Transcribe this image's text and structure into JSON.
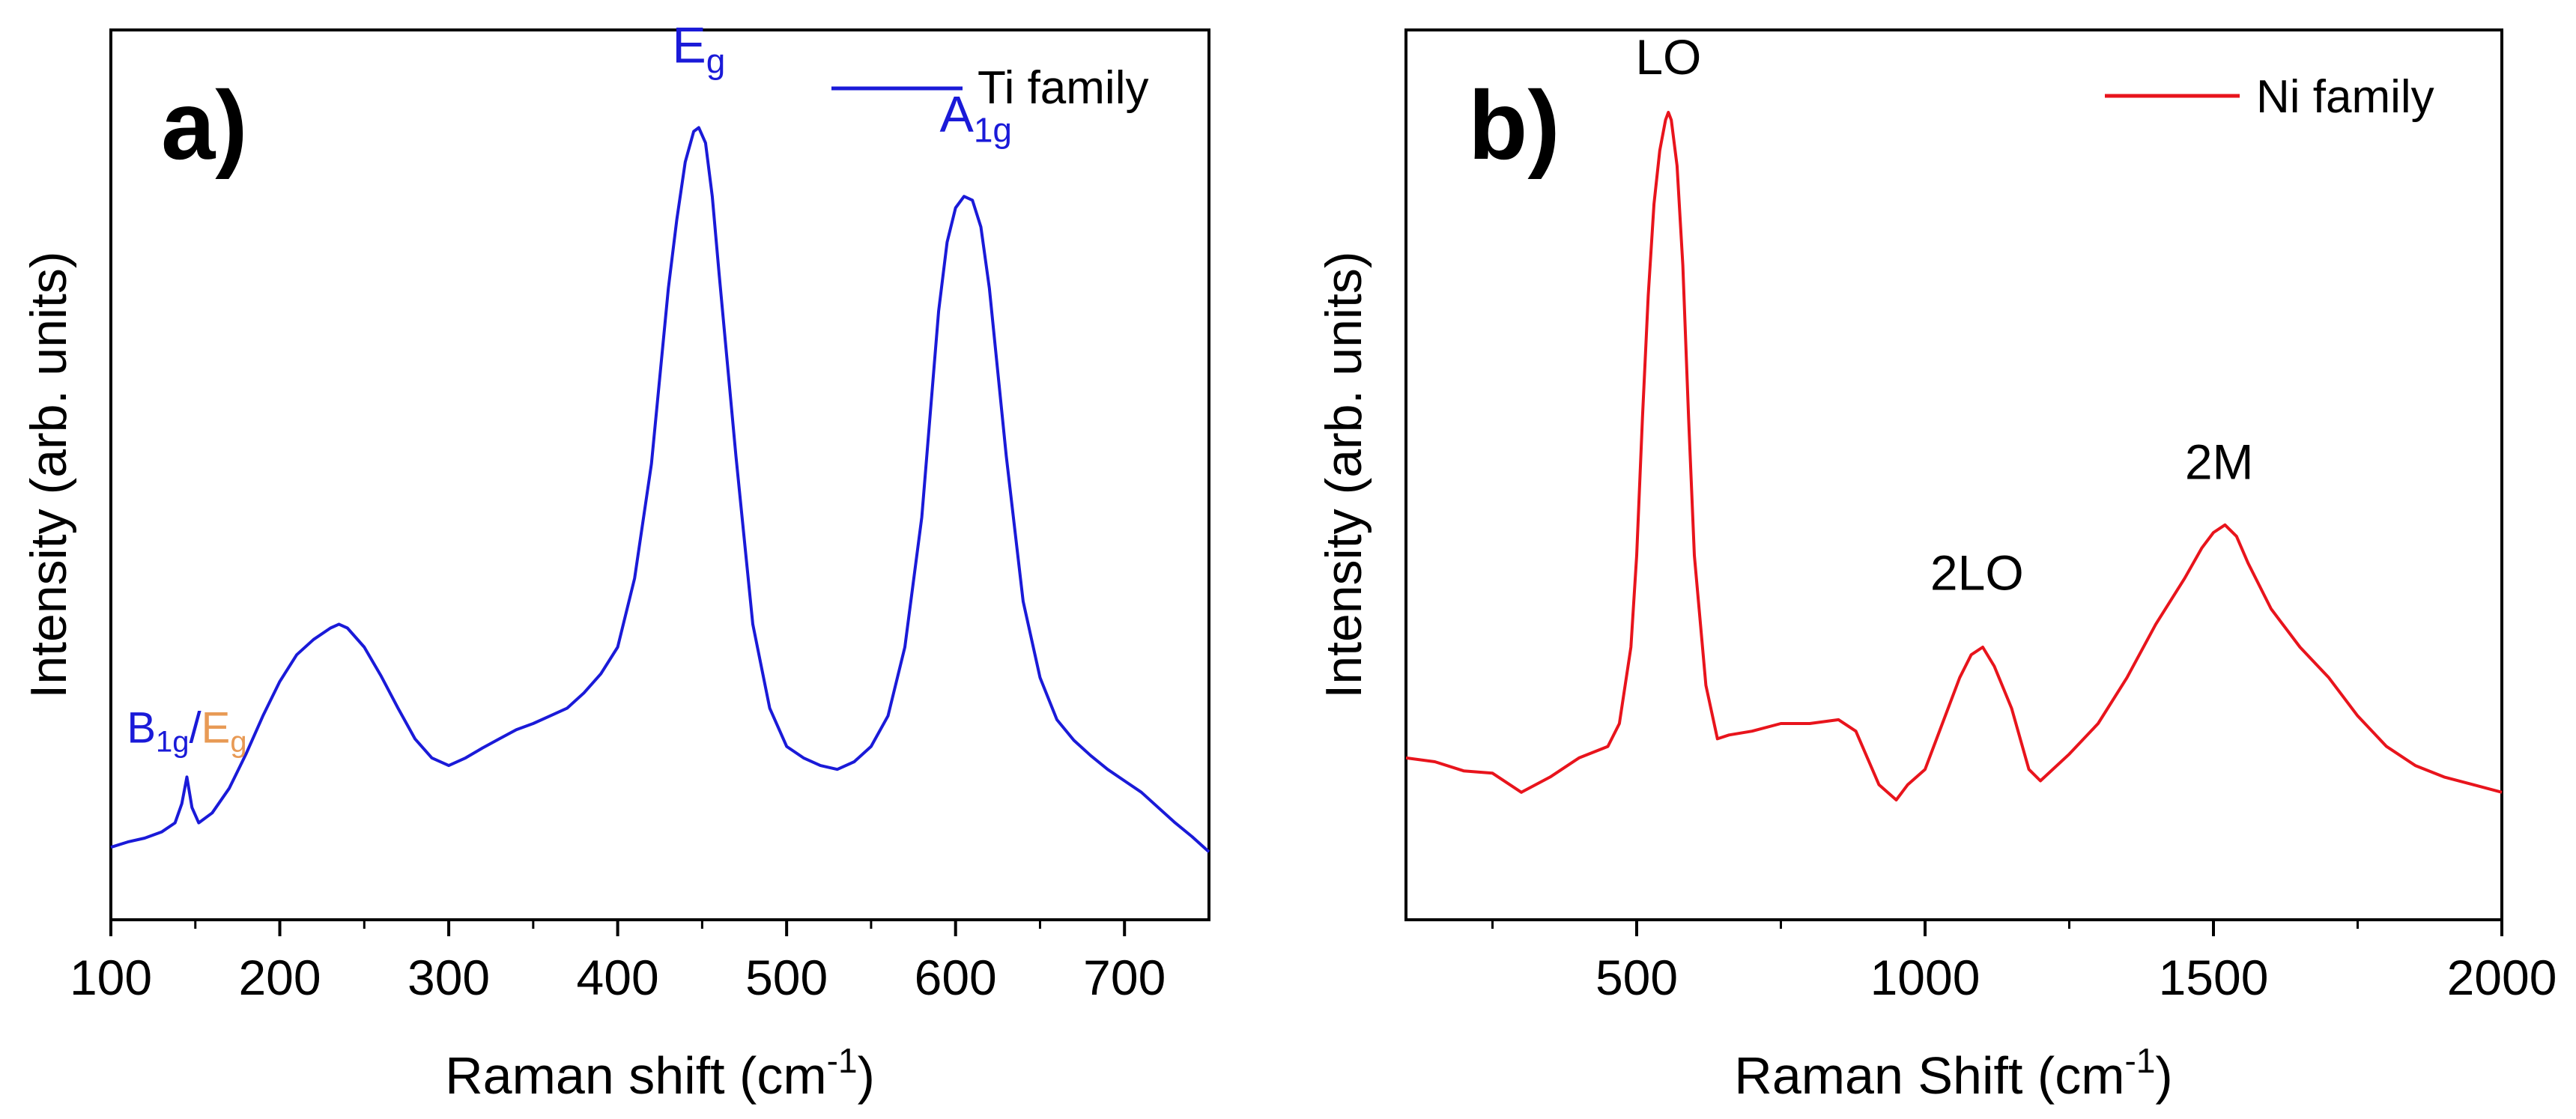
{
  "chart_data": [
    {
      "panel_label": "a)",
      "type": "line",
      "title": "",
      "xlabel": "Raman shift (cm",
      "xlabel_sup": "-1",
      "xlabel_close": ")",
      "ylabel": "Intensity (arb. units)",
      "xlim": [
        100,
        750
      ],
      "ylim": [
        0,
        1
      ],
      "xticks": [
        100,
        200,
        300,
        400,
        500,
        600,
        700
      ],
      "xtick_labels": [
        "100",
        "200",
        "300",
        "400",
        "500",
        "600",
        "700"
      ],
      "minor_xticks": [
        150,
        250,
        350,
        450,
        550,
        650
      ],
      "yticks_shown": false,
      "line_color": "#1a1ad8",
      "legend": {
        "label": "Ti family",
        "position": "top-right"
      },
      "series": [
        {
          "name": "Ti family",
          "x": [
            100,
            110,
            120,
            130,
            138,
            142,
            145,
            148,
            152,
            160,
            170,
            180,
            190,
            200,
            210,
            220,
            230,
            235,
            240,
            250,
            260,
            270,
            280,
            290,
            300,
            310,
            320,
            330,
            340,
            350,
            360,
            370,
            380,
            390,
            400,
            410,
            420,
            430,
            435,
            440,
            445,
            448,
            452,
            456,
            460,
            470,
            480,
            490,
            500,
            510,
            520,
            530,
            540,
            550,
            560,
            570,
            580,
            590,
            595,
            600,
            605,
            610,
            615,
            620,
            630,
            640,
            650,
            660,
            670,
            680,
            690,
            700,
            710,
            720,
            730,
            740,
            750
          ],
          "y": [
            0.038,
            0.045,
            0.05,
            0.058,
            0.07,
            0.095,
            0.13,
            0.09,
            0.07,
            0.083,
            0.115,
            0.16,
            0.21,
            0.255,
            0.29,
            0.31,
            0.325,
            0.33,
            0.325,
            0.3,
            0.262,
            0.22,
            0.18,
            0.155,
            0.145,
            0.155,
            0.168,
            0.18,
            0.192,
            0.2,
            0.21,
            0.22,
            0.24,
            0.265,
            0.3,
            0.39,
            0.54,
            0.77,
            0.86,
            0.935,
            0.975,
            0.98,
            0.96,
            0.89,
            0.79,
            0.55,
            0.33,
            0.22,
            0.17,
            0.155,
            0.145,
            0.14,
            0.15,
            0.17,
            0.21,
            0.3,
            0.47,
            0.74,
            0.83,
            0.875,
            0.89,
            0.885,
            0.85,
            0.77,
            0.55,
            0.36,
            0.26,
            0.205,
            0.178,
            0.158,
            0.14,
            0.125,
            0.11,
            0.09,
            0.07,
            0.052,
            0.032
          ]
        }
      ],
      "annotations": [
        {
          "id": "eg",
          "text": "E",
          "sub": "g",
          "x": 448,
          "y": 1.065,
          "color": "#1a1ad8"
        },
        {
          "id": "a1g",
          "text": "A",
          "sub": "1g",
          "x": 612,
          "y": 0.975,
          "color": "#1a1ad8"
        },
        {
          "id": "b1g",
          "text": "B",
          "sub": "1g",
          "slash": "/",
          "text2": "E",
          "sub2": "g",
          "x": 145,
          "y": 0.175,
          "color": "#1a1ad8",
          "color2": "#e89a55"
        }
      ]
    },
    {
      "panel_label": "b)",
      "type": "line",
      "title": "",
      "xlabel": "Raman Shift (cm",
      "xlabel_sup": "-1",
      "xlabel_close": ")",
      "ylabel": "Intensity (arb. units)",
      "xlim": [
        100,
        2000
      ],
      "ylim": [
        0,
        1
      ],
      "xticks": [
        500,
        1000,
        1500,
        2000
      ],
      "xtick_labels": [
        "500",
        "1000",
        "1500",
        "2000"
      ],
      "minor_xticks": [
        250,
        750,
        1250,
        1750
      ],
      "yticks_shown": false,
      "line_color": "#e8141c",
      "legend": {
        "label": "Ni family",
        "position": "top-right"
      },
      "series": [
        {
          "name": "Ni family",
          "x": [
            100,
            150,
            200,
            250,
            300,
            350,
            400,
            450,
            470,
            490,
            500,
            510,
            520,
            530,
            540,
            550,
            555,
            560,
            570,
            580,
            590,
            600,
            620,
            640,
            660,
            700,
            750,
            800,
            850,
            880,
            900,
            920,
            950,
            970,
            1000,
            1030,
            1060,
            1080,
            1100,
            1120,
            1150,
            1180,
            1200,
            1250,
            1300,
            1350,
            1400,
            1450,
            1480,
            1500,
            1520,
            1540,
            1560,
            1600,
            1650,
            1700,
            1750,
            1800,
            1850,
            1900,
            1950,
            2000
          ],
          "y": [
            0.155,
            0.15,
            0.138,
            0.135,
            0.11,
            0.13,
            0.155,
            0.17,
            0.2,
            0.3,
            0.42,
            0.6,
            0.76,
            0.88,
            0.95,
            0.99,
            1.0,
            0.99,
            0.93,
            0.8,
            0.6,
            0.42,
            0.25,
            0.18,
            0.185,
            0.19,
            0.2,
            0.2,
            0.205,
            0.19,
            0.155,
            0.12,
            0.1,
            0.12,
            0.14,
            0.2,
            0.26,
            0.29,
            0.3,
            0.275,
            0.22,
            0.14,
            0.125,
            0.16,
            0.2,
            0.26,
            0.33,
            0.39,
            0.43,
            0.45,
            0.46,
            0.445,
            0.41,
            0.35,
            0.3,
            0.26,
            0.21,
            0.17,
            0.145,
            0.13,
            0.12,
            0.11
          ]
        }
      ],
      "annotations": [
        {
          "id": "lo",
          "text": "LO",
          "x": 555,
          "y": 1.05
        },
        {
          "id": "2lo",
          "text": "2LO",
          "x": 1090,
          "y": 0.375
        },
        {
          "id": "2m",
          "text": "2M",
          "x": 1510,
          "y": 0.52
        }
      ]
    }
  ]
}
